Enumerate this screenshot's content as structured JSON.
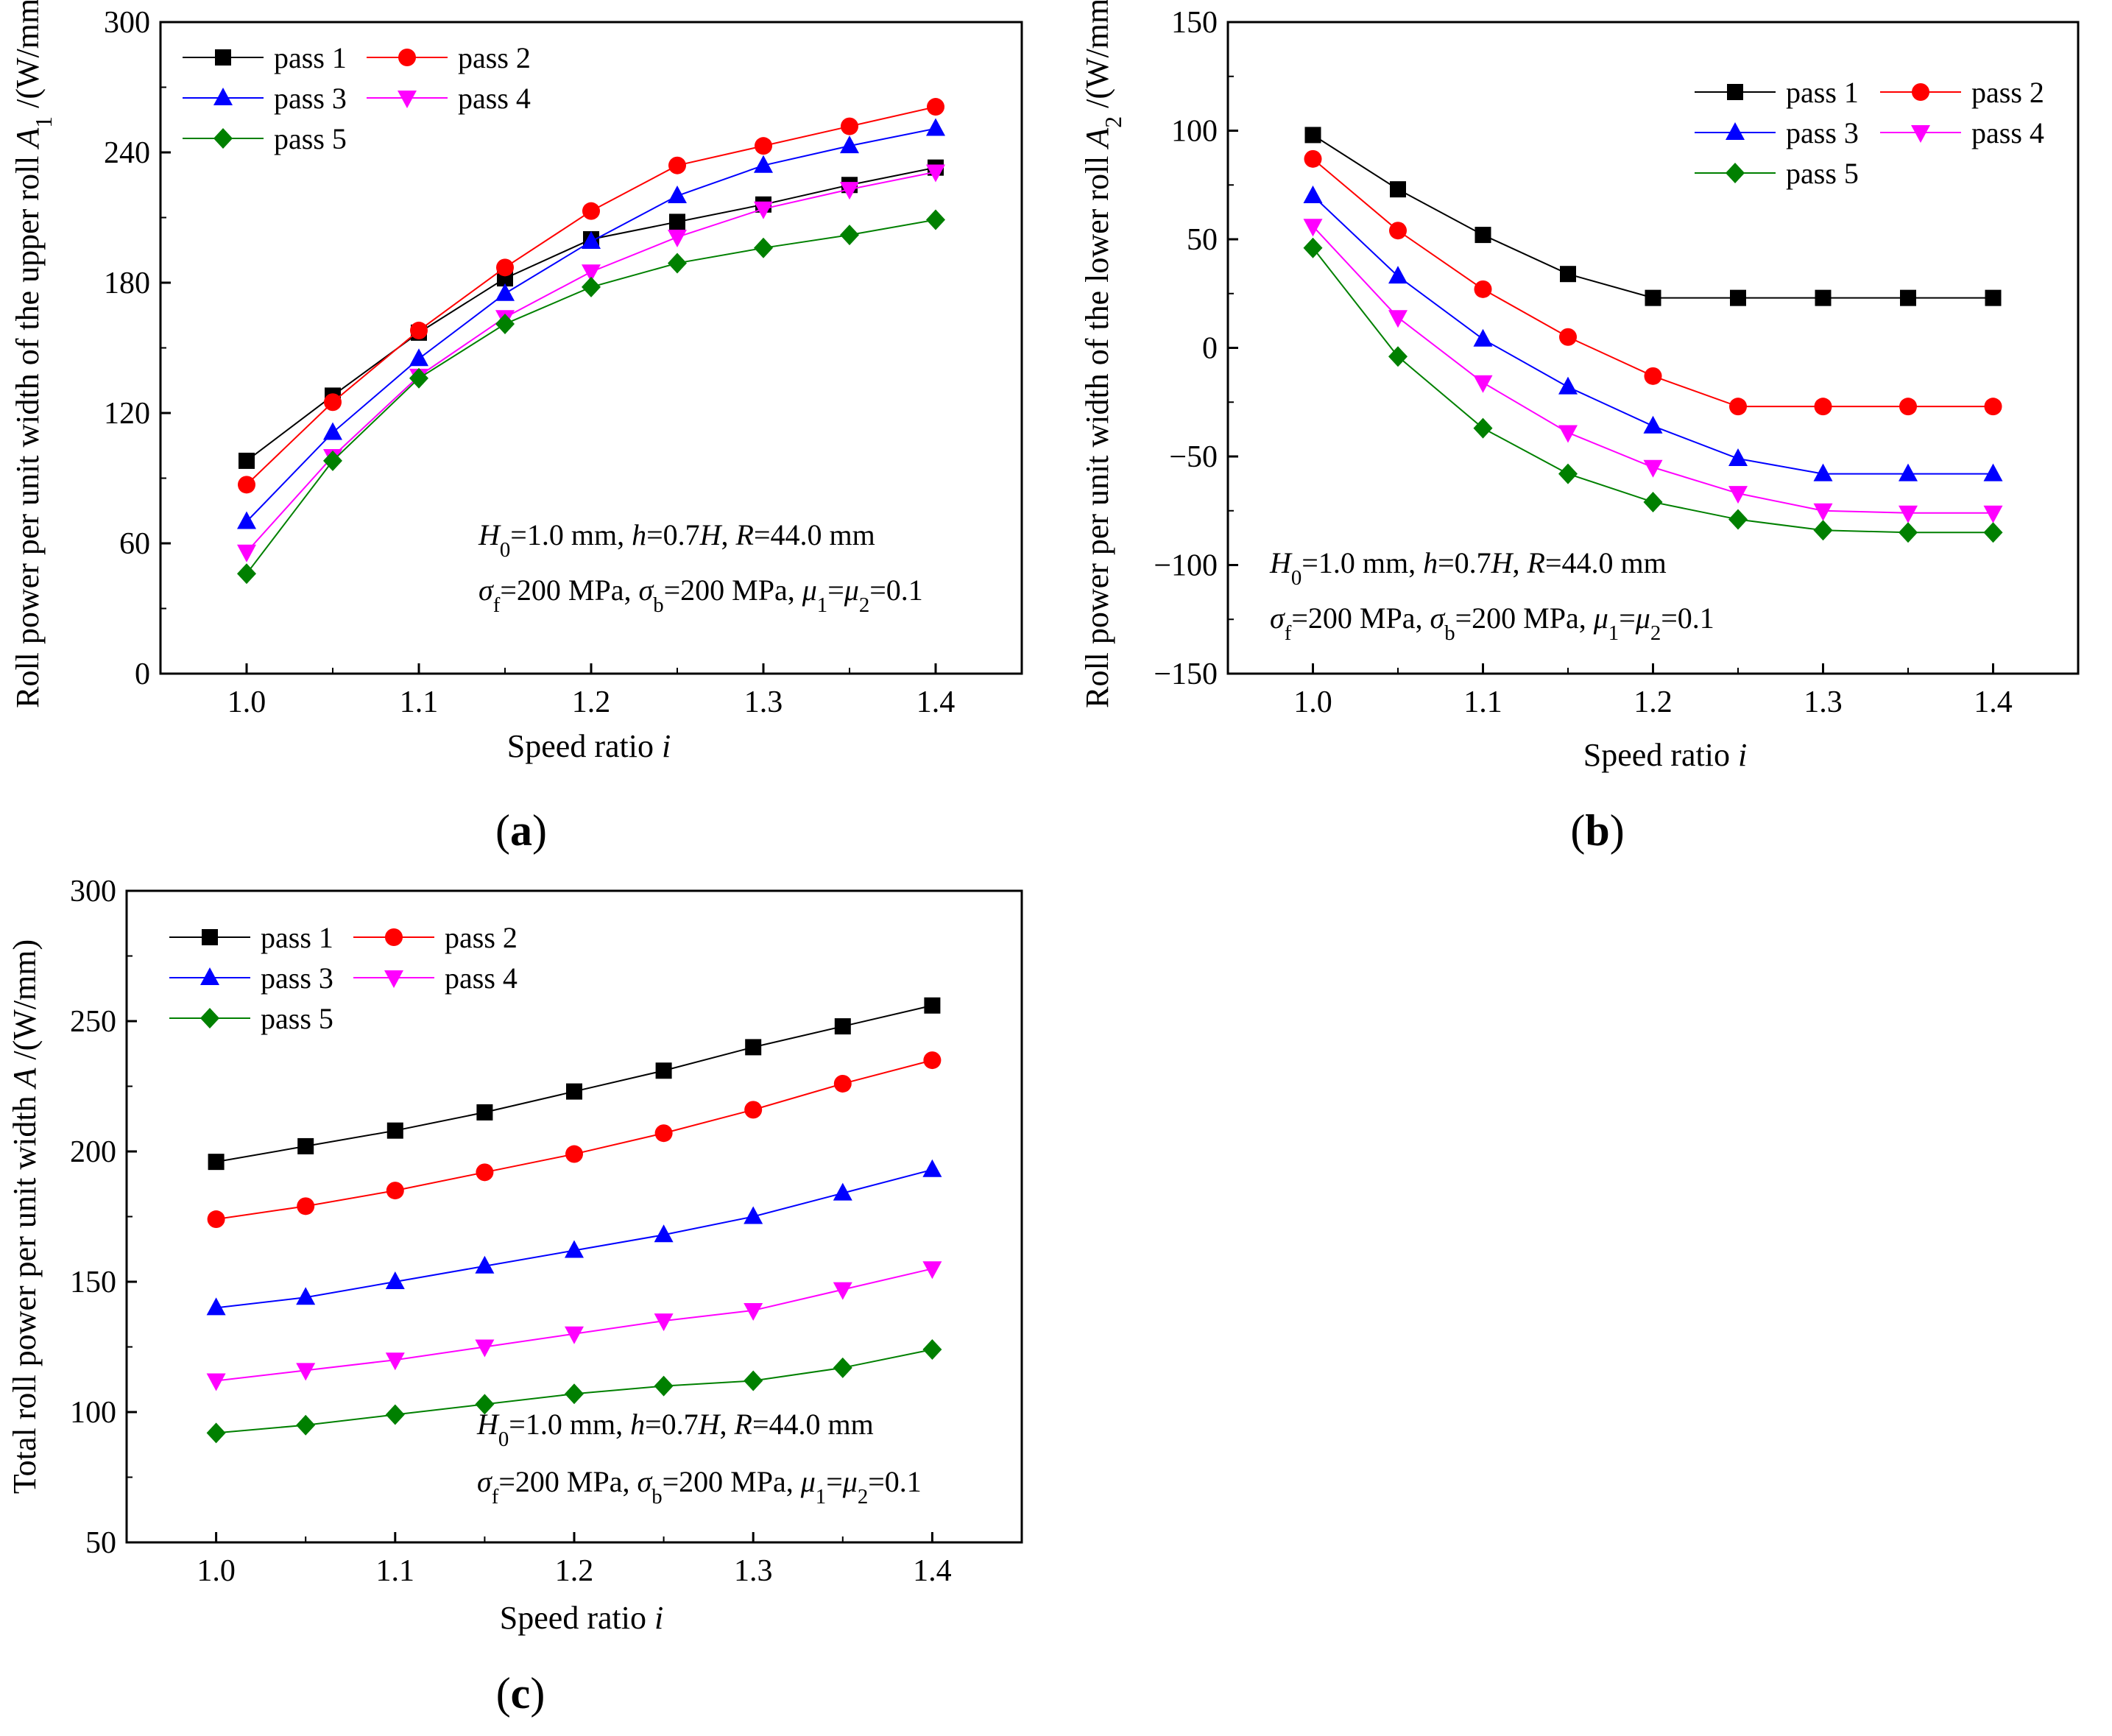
{
  "chart_data": [
    {
      "id": "a",
      "type": "line",
      "panel_label": "(a)",
      "panel_letter": "a",
      "xlabel": "Speed ratio",
      "xlabel_var": "i",
      "ylabel": "Roll power per unit width of the upper roll",
      "ylabel_sym": "A",
      "ylabel_sub": "1",
      "ylabel_unit": "/(W/mm)",
      "xlim": [
        0.95,
        1.45
      ],
      "ylim": [
        0,
        300
      ],
      "x_ticks": [
        "1.0",
        "1.1",
        "1.2",
        "1.3",
        "1.4"
      ],
      "y_ticks": [
        "0",
        "60",
        "120",
        "180",
        "240",
        "300"
      ],
      "legend_position": "top-left",
      "x": [
        1.0,
        1.05,
        1.1,
        1.15,
        1.2,
        1.25,
        1.3,
        1.35,
        1.4
      ],
      "series": [
        {
          "name": "pass 1",
          "values": [
            98,
            128,
            157,
            182,
            200,
            208,
            216,
            225,
            233
          ]
        },
        {
          "name": "pass 2",
          "values": [
            87,
            125,
            158,
            187,
            213,
            234,
            243,
            252,
            261
          ]
        },
        {
          "name": "pass 3",
          "values": [
            70,
            111,
            145,
            175,
            199,
            220,
            234,
            243,
            251
          ]
        },
        {
          "name": "pass 4",
          "values": [
            56,
            100,
            137,
            164,
            185,
            201,
            214,
            223,
            231
          ]
        },
        {
          "name": "pass 5",
          "values": [
            46,
            98,
            136,
            161,
            178,
            189,
            196,
            202,
            209
          ]
        }
      ],
      "annotation_line1": [
        "H",
        "0",
        "=1.0 mm, ",
        "h",
        "=0.7",
        "H",
        ", ",
        "R",
        "=44.0 mm"
      ],
      "annotation_line2": [
        "σ",
        "f",
        "=200 MPa, ",
        "σ",
        "b",
        "=200 MPa, ",
        "μ",
        "1",
        "=",
        "μ",
        "2",
        "=0.1"
      ]
    },
    {
      "id": "b",
      "type": "line",
      "panel_label": "(b)",
      "panel_letter": "b",
      "xlabel": "Speed ratio",
      "xlabel_var": "i",
      "ylabel": "Roll power per unit width of the lower roll",
      "ylabel_sym": "A",
      "ylabel_sub": "2",
      "ylabel_unit": "/(W/mm)",
      "xlim": [
        0.95,
        1.45
      ],
      "ylim": [
        -150,
        150
      ],
      "x_ticks": [
        "1.0",
        "1.1",
        "1.2",
        "1.3",
        "1.4"
      ],
      "y_ticks": [
        "−150",
        "−100",
        "−50",
        "0",
        "50",
        "100",
        "150"
      ],
      "legend_position": "top-right",
      "x": [
        1.0,
        1.05,
        1.1,
        1.15,
        1.2,
        1.25,
        1.3,
        1.35,
        1.4
      ],
      "series": [
        {
          "name": "pass 1",
          "values": [
            98,
            73,
            52,
            34,
            23,
            23,
            23,
            23,
            23
          ]
        },
        {
          "name": "pass 2",
          "values": [
            87,
            54,
            27,
            5,
            -13,
            -27,
            -27,
            -27,
            -27
          ]
        },
        {
          "name": "pass 3",
          "values": [
            70,
            33,
            4,
            -18,
            -36,
            -51,
            -58,
            -58,
            -58
          ]
        },
        {
          "name": "pass 4",
          "values": [
            56,
            14,
            -16,
            -39,
            -55,
            -67,
            -75,
            -76,
            -76
          ]
        },
        {
          "name": "pass 5",
          "values": [
            46,
            -4,
            -37,
            -58,
            -71,
            -79,
            -84,
            -85,
            -85
          ]
        }
      ],
      "annotation_line1": [
        "H",
        "0",
        "=1.0 mm, ",
        "h",
        "=0.7",
        "H",
        ", ",
        "R",
        "=44.0 mm"
      ],
      "annotation_line2": [
        "σ",
        "f",
        "=200 MPa, ",
        "σ",
        "b",
        "=200 MPa, ",
        "μ",
        "1",
        "=",
        "μ",
        "2",
        "=0.1"
      ]
    },
    {
      "id": "c",
      "type": "line",
      "panel_label": "(c)",
      "panel_letter": "c",
      "xlabel": "Speed ratio",
      "xlabel_var": "i",
      "ylabel": "Total roll power per unit width",
      "ylabel_sym": "A",
      "ylabel_sub": "",
      "ylabel_unit": "/(W/mm)",
      "xlim": [
        0.95,
        1.45
      ],
      "ylim": [
        50,
        300
      ],
      "x_ticks": [
        "1.0",
        "1.1",
        "1.2",
        "1.3",
        "1.4"
      ],
      "y_ticks": [
        "50",
        "100",
        "150",
        "200",
        "250",
        "300"
      ],
      "legend_position": "top-left",
      "x": [
        1.0,
        1.05,
        1.1,
        1.15,
        1.2,
        1.25,
        1.3,
        1.35,
        1.4
      ],
      "series": [
        {
          "name": "pass 1",
          "values": [
            196,
            202,
            208,
            215,
            223,
            231,
            240,
            248,
            256
          ]
        },
        {
          "name": "pass 2",
          "values": [
            174,
            179,
            185,
            192,
            199,
            207,
            216,
            226,
            235
          ]
        },
        {
          "name": "pass 3",
          "values": [
            140,
            144,
            150,
            156,
            162,
            168,
            175,
            184,
            193
          ]
        },
        {
          "name": "pass 4",
          "values": [
            112,
            116,
            120,
            125,
            130,
            135,
            139,
            147,
            155
          ]
        },
        {
          "name": "pass 5",
          "values": [
            92,
            95,
            99,
            103,
            107,
            110,
            112,
            117,
            124
          ]
        }
      ],
      "annotation_line1": [
        "H",
        "0",
        "=1.0 mm, ",
        "h",
        "=0.7",
        "H",
        ", ",
        "R",
        "=44.0 mm"
      ],
      "annotation_line2": [
        "σ",
        "f",
        "=200 MPa, ",
        "σ",
        "b",
        "=200 MPa, ",
        "μ",
        "1",
        "=",
        "μ",
        "2",
        "=0.1"
      ]
    }
  ],
  "series_styles": [
    {
      "color": "#000000",
      "marker": "square"
    },
    {
      "color": "#ff0000",
      "marker": "circle"
    },
    {
      "color": "#0000ff",
      "marker": "triangle-up"
    },
    {
      "color": "#ff00ff",
      "marker": "triangle-down"
    },
    {
      "color": "#008000",
      "marker": "diamond"
    }
  ]
}
